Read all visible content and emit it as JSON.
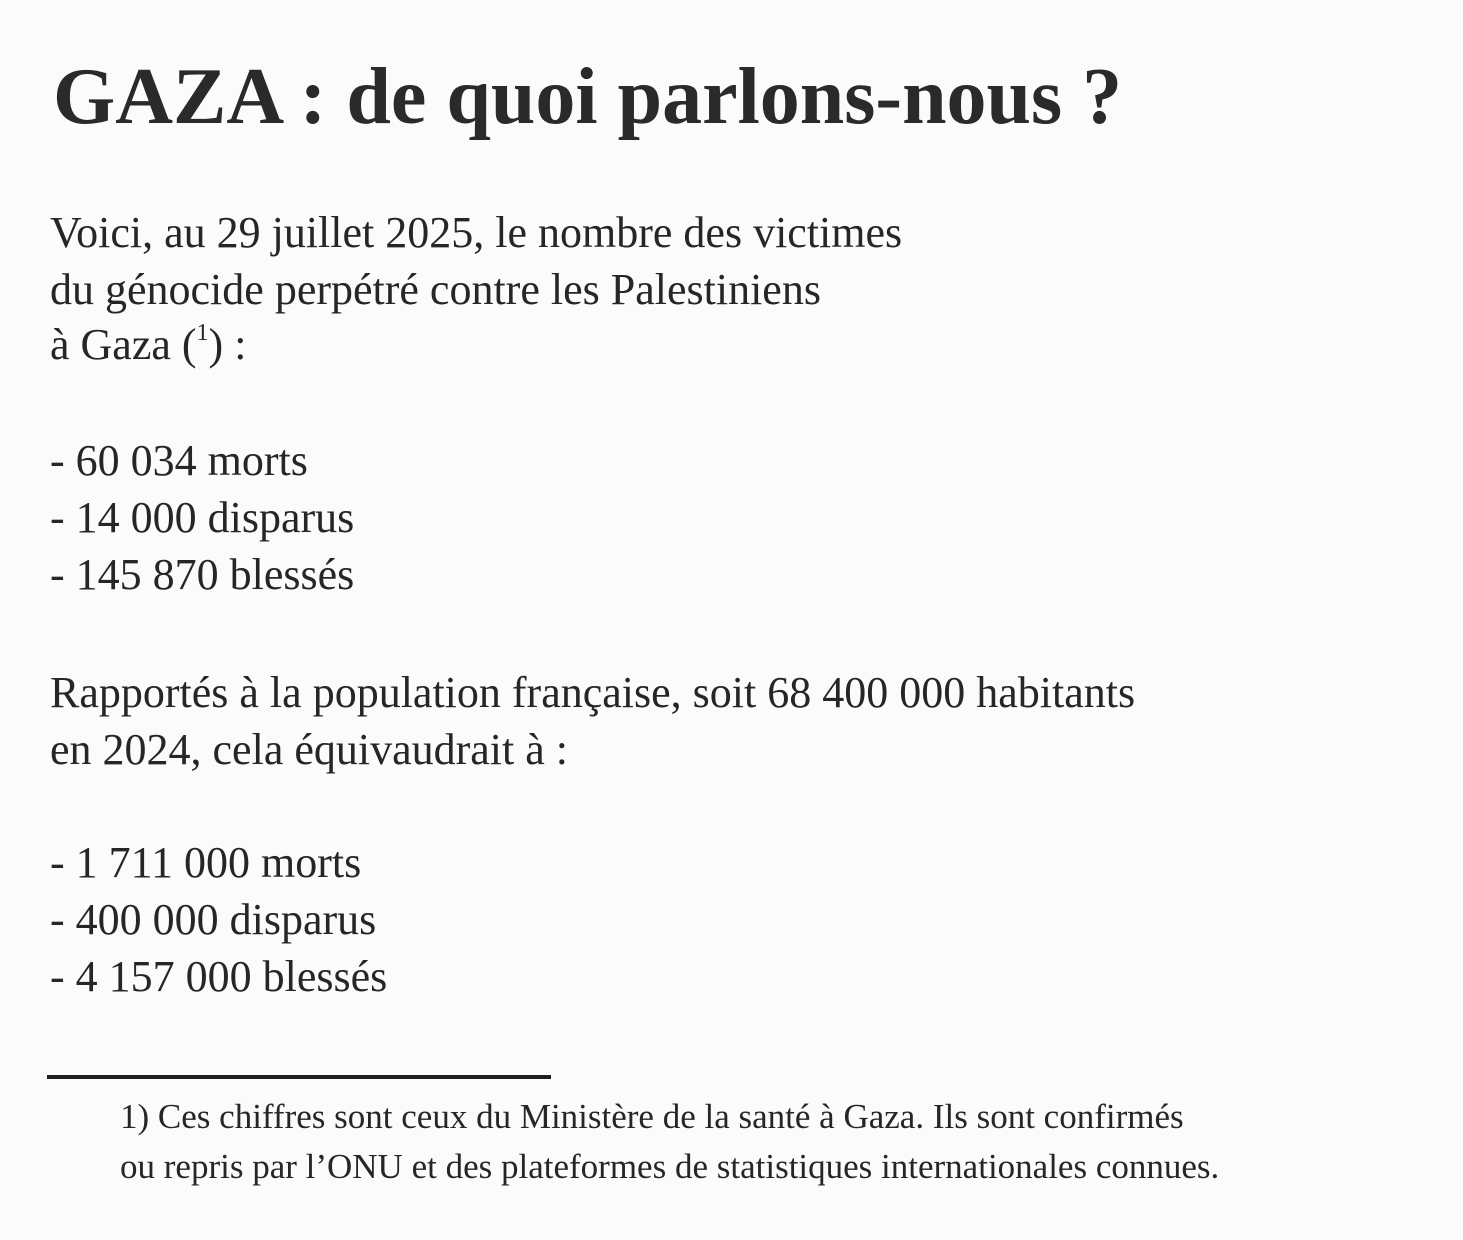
{
  "title": "GAZA : de quoi parlons-nous ?",
  "intro": {
    "line1": "Voici, au 29 juillet 2025, le nombre des victimes",
    "line2": "du génocide perpétré contre les Palestiniens",
    "line3_before": "à Gaza (",
    "line3_note": "1",
    "line3_after": ") :"
  },
  "gaza_figures": [
    "- 60 034 morts",
    "- 14 000 disparus",
    "- 145 870 blessés"
  ],
  "comparison": {
    "line1": "Rapportés à la population française, soit 68 400 000 habitants",
    "line2": "en 2024, cela équivaudrait à :"
  },
  "france_equivalents": [
    "- 1 711 000 morts",
    "- 400 000 disparus",
    "- 4 157 000 blessés"
  ],
  "footnote": {
    "line1": "1) Ces chiffres sont ceux du Ministère de la santé à Gaza. Ils sont confirmés",
    "line2": "ou repris par l’ONU et des plateformes de statistiques internationales connues."
  }
}
